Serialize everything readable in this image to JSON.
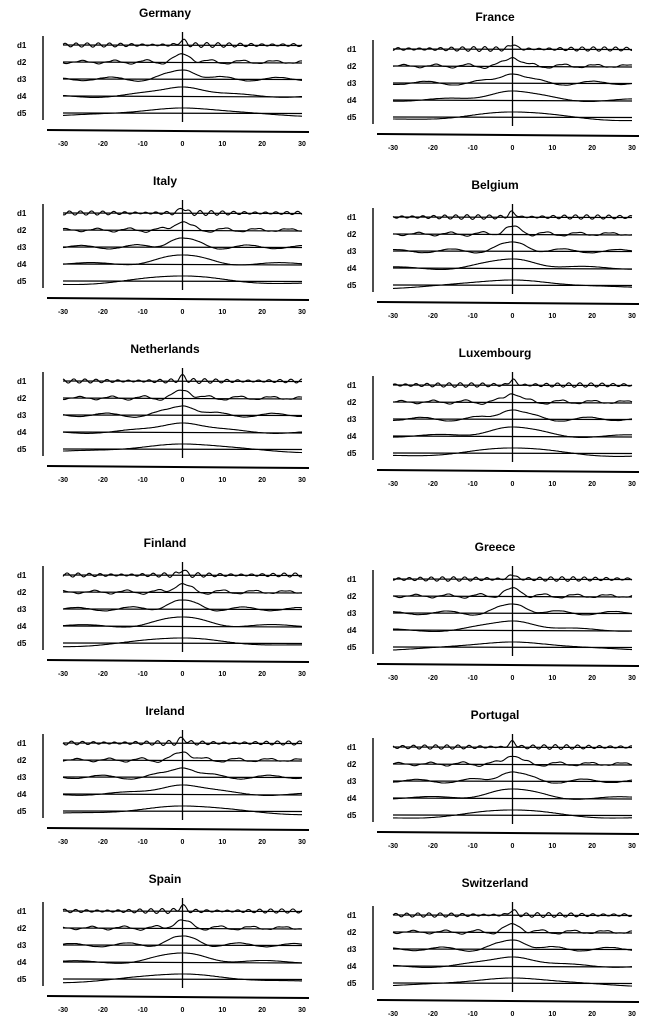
{
  "chart_data": {
    "type": "line",
    "panels": [
      {
        "title": "Germany",
        "series": [
          "d1",
          "d2",
          "d3",
          "d4",
          "d5"
        ],
        "x_ticks": [
          -30,
          -20,
          -10,
          0,
          10,
          20,
          30
        ],
        "xlim": [
          -30,
          30
        ]
      },
      {
        "title": "France",
        "series": [
          "d1",
          "d2",
          "d3",
          "d4",
          "d5"
        ],
        "x_ticks": [
          -30,
          -20,
          -10,
          0,
          10,
          20,
          30
        ],
        "xlim": [
          -30,
          30
        ]
      },
      {
        "title": "Italy",
        "series": [
          "d1",
          "d2",
          "d3",
          "d4",
          "d5"
        ],
        "x_ticks": [
          -30,
          -20,
          -10,
          0,
          10,
          20,
          30
        ],
        "xlim": [
          -30,
          30
        ]
      },
      {
        "title": "Belgium",
        "series": [
          "d1",
          "d2",
          "d3",
          "d4",
          "d5"
        ],
        "x_ticks": [
          -30,
          -20,
          -10,
          0,
          10,
          20,
          30
        ],
        "xlim": [
          -30,
          30
        ]
      },
      {
        "title": "Netherlands",
        "series": [
          "d1",
          "d2",
          "d3",
          "d4",
          "d5"
        ],
        "x_ticks": [
          -30,
          -20,
          -10,
          0,
          10,
          20,
          30
        ],
        "xlim": [
          -30,
          30
        ]
      },
      {
        "title": "Luxembourg",
        "series": [
          "d1",
          "d2",
          "d3",
          "d4",
          "d5"
        ],
        "x_ticks": [
          -30,
          -20,
          -10,
          0,
          10,
          20,
          30
        ],
        "xlim": [
          -30,
          30
        ]
      },
      {
        "title": "Finland",
        "series": [
          "d1",
          "d2",
          "d3",
          "d4",
          "d5"
        ],
        "x_ticks": [
          -30,
          -20,
          -10,
          0,
          10,
          20,
          30
        ],
        "xlim": [
          -30,
          30
        ]
      },
      {
        "title": "Greece",
        "series": [
          "d1",
          "d2",
          "d3",
          "d4",
          "d5"
        ],
        "x_ticks": [
          -30,
          -20,
          -10,
          0,
          10,
          20,
          30
        ],
        "xlim": [
          -30,
          30
        ]
      },
      {
        "title": "Ireland",
        "series": [
          "d1",
          "d2",
          "d3",
          "d4",
          "d5"
        ],
        "x_ticks": [
          -30,
          -20,
          -10,
          0,
          10,
          20,
          30
        ],
        "xlim": [
          -30,
          30
        ]
      },
      {
        "title": "Portugal",
        "series": [
          "d1",
          "d2",
          "d3",
          "d4",
          "d5"
        ],
        "x_ticks": [
          -30,
          -20,
          -10,
          0,
          10,
          20,
          30
        ],
        "xlim": [
          -30,
          30
        ]
      },
      {
        "title": "Spain",
        "series": [
          "d1",
          "d2",
          "d3",
          "d4",
          "d5"
        ],
        "x_ticks": [
          -30,
          -20,
          -10,
          0,
          10,
          20,
          30
        ],
        "xlim": [
          -30,
          30
        ]
      },
      {
        "title": "Switzerland",
        "series": [
          "d1",
          "d2",
          "d3",
          "d4",
          "d5"
        ],
        "x_ticks": [
          -30,
          -20,
          -10,
          0,
          10,
          20,
          30
        ],
        "xlim": [
          -30,
          30
        ]
      }
    ]
  }
}
